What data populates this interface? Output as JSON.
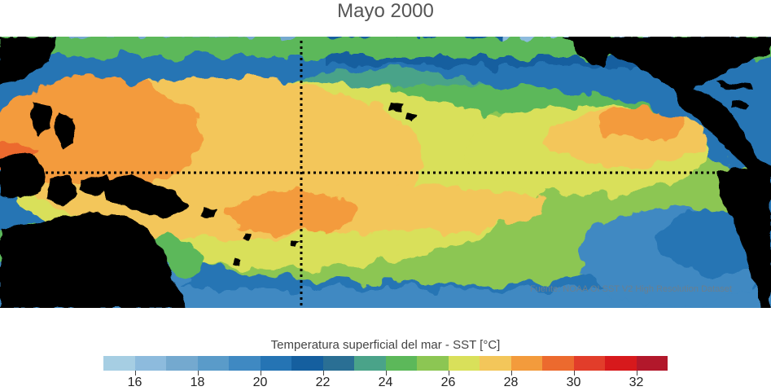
{
  "title": "Mayo 2000",
  "credit": "Fuente: NOAA OI SST V2 High Resolution Dataset",
  "colorbar": {
    "title": "Temperatura superficial del mar - SST  [°C]",
    "min": 15,
    "max": 33,
    "colors": [
      "#a6cee3",
      "#8dbbdd",
      "#74a9cf",
      "#5a9bc9",
      "#3f89c2",
      "#2574b4",
      "#155f9f",
      "#2a6f94",
      "#4aa389",
      "#5cb85a",
      "#8cc653",
      "#d9e05a",
      "#f3c65a",
      "#f39b3c",
      "#ec6a2e",
      "#e23d2a",
      "#d7191c",
      "#b2182b"
    ],
    "ticks": [
      16,
      18,
      20,
      22,
      24,
      26,
      28,
      30,
      32
    ]
  }
}
